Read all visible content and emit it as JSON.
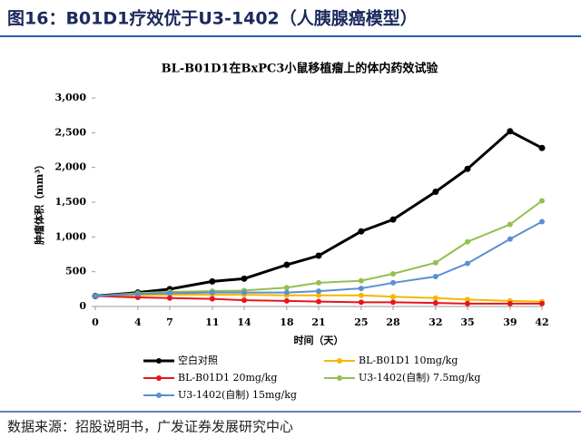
{
  "figure_title": "图16：B01D1疗效优于U3-1402（人胰腺癌模型）",
  "source": "数据来源：招股说明书，广发证券发展研究中心",
  "chart_data": {
    "type": "line",
    "title": "BL-B01D1在BxPC3小鼠移植瘤上的体内药效试验",
    "x_label": "时间（天）",
    "y_label": "肿瘤体积（mm³）",
    "x": [
      0,
      4,
      7,
      11,
      14,
      18,
      21,
      25,
      28,
      32,
      35,
      39,
      42
    ],
    "xlim": [
      0,
      42
    ],
    "xticks": [
      0,
      4,
      7,
      11,
      14,
      18,
      21,
      25,
      28,
      32,
      35,
      39,
      42
    ],
    "ylim": [
      0,
      3000
    ],
    "yticks": [
      0,
      500,
      {
        "value": 1000,
        "label": "1,000"
      },
      {
        "value": 1500,
        "label": "1,500"
      },
      {
        "value": 2000,
        "label": "2,000"
      },
      {
        "value": 2500,
        "label": "2,500"
      },
      {
        "value": 3000,
        "label": "3,000"
      }
    ],
    "grid": false,
    "series": [
      {
        "name": "空白对照",
        "color": "#000000",
        "values": [
          150,
          200,
          250,
          360,
          400,
          600,
          730,
          1080,
          1250,
          1650,
          1980,
          2520,
          2280
        ]
      },
      {
        "name": "BL-B01D1 10mg/kg",
        "color": "#f5b800",
        "values": [
          150,
          160,
          170,
          170,
          170,
          160,
          160,
          160,
          140,
          120,
          100,
          80,
          70
        ]
      },
      {
        "name": "BL-B01D1 20mg/kg",
        "color": "#e8141c",
        "values": [
          150,
          130,
          120,
          110,
          90,
          80,
          70,
          60,
          60,
          50,
          40,
          40,
          40
        ]
      },
      {
        "name": "U3-1402(自制) 7.5mg/kg",
        "color": "#92c050",
        "values": [
          150,
          190,
          210,
          220,
          230,
          270,
          340,
          370,
          470,
          630,
          930,
          1180,
          1520
        ]
      },
      {
        "name": "U3-1402(自制) 15mg/kg",
        "color": "#5b8fd0",
        "values": [
          150,
          180,
          190,
          200,
          200,
          200,
          220,
          260,
          340,
          430,
          620,
          970,
          1220
        ]
      }
    ]
  }
}
